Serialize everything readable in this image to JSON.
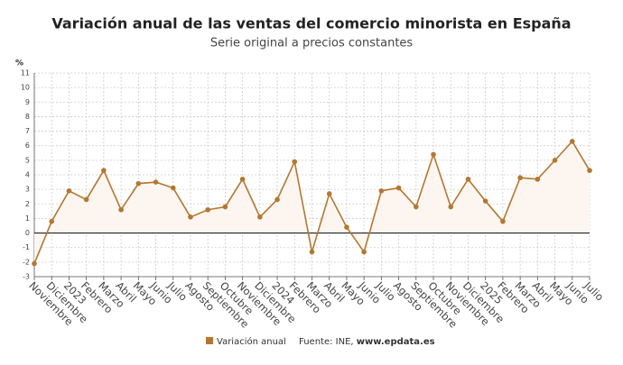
{
  "chart_data": {
    "type": "line",
    "title": "Variación anual de las ventas del comercio minorista en España",
    "subtitle": "Serie original a precios constantes",
    "y_label": "%",
    "categories": [
      "Noviembre",
      "Diciembre",
      "2023",
      "Febrero",
      "Marzo",
      "Abril",
      "Mayo",
      "Junio",
      "Julio",
      "Agosto",
      "Septiembre",
      "Octubre",
      "Noviembre",
      "Diciembre",
      "2024",
      "Febrero",
      "Marzo",
      "Abril",
      "Mayo",
      "Junio",
      "Julio",
      "Agosto",
      "Septiembre",
      "Octubre",
      "Noviembre",
      "Diciembre",
      "2025",
      "Febrero",
      "Marzo",
      "Abril",
      "Mayo",
      "Junio",
      "Julio"
    ],
    "series": [
      {
        "name": "Variación anual",
        "color": "#b5772e",
        "values": [
          -2.1,
          0.8,
          2.9,
          2.3,
          4.3,
          1.6,
          3.4,
          3.5,
          3.1,
          1.1,
          1.6,
          1.8,
          3.7,
          1.1,
          2.3,
          4.9,
          -1.3,
          2.7,
          0.4,
          -1.3,
          2.9,
          3.1,
          1.8,
          5.4,
          1.8,
          3.7,
          2.2,
          0.8,
          3.8,
          3.7,
          5.0,
          6.3,
          4.3
        ]
      }
    ],
    "ylim": [
      -3,
      11
    ],
    "yticks": [
      -3,
      -2,
      -1,
      0,
      1,
      2,
      3,
      4,
      5,
      6,
      7,
      8,
      9,
      10,
      11
    ],
    "grid": true,
    "area_fill": "#fdf6f0",
    "source_prefix": "Fuente: INE,",
    "source_link": "www.epdata.es"
  }
}
